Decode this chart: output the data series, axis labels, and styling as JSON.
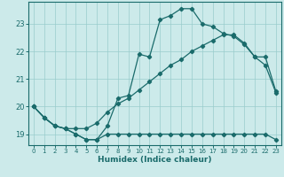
{
  "xlabel": "Humidex (Indice chaleur)",
  "background_color": "#cceaea",
  "grid_color": "#99cccc",
  "line_color": "#1a6b6b",
  "xlim": [
    -0.5,
    23.5
  ],
  "ylim": [
    18.6,
    23.8
  ],
  "yticks": [
    19,
    20,
    21,
    22,
    23
  ],
  "xticks": [
    0,
    1,
    2,
    3,
    4,
    5,
    6,
    7,
    8,
    9,
    10,
    11,
    12,
    13,
    14,
    15,
    16,
    17,
    18,
    19,
    20,
    21,
    22,
    23
  ],
  "line1_x": [
    0,
    1,
    2,
    3,
    4,
    5,
    6,
    7,
    8,
    9,
    10,
    11,
    12,
    13,
    14,
    15,
    16,
    17,
    18,
    19,
    20,
    21,
    22,
    23
  ],
  "line1_y": [
    20.0,
    19.6,
    19.3,
    19.2,
    19.0,
    18.8,
    18.8,
    19.0,
    19.0,
    19.0,
    19.0,
    19.0,
    19.0,
    19.0,
    19.0,
    19.0,
    19.0,
    19.0,
    19.0,
    19.0,
    19.0,
    19.0,
    19.0,
    18.8
  ],
  "line2_x": [
    0,
    1,
    2,
    3,
    4,
    5,
    6,
    7,
    8,
    9,
    10,
    11,
    12,
    13,
    14,
    15,
    16,
    17,
    18,
    19,
    20,
    21,
    22,
    23
  ],
  "line2_y": [
    20.0,
    19.6,
    19.3,
    19.2,
    19.2,
    19.2,
    19.4,
    19.8,
    20.1,
    20.3,
    20.6,
    20.9,
    21.2,
    21.5,
    21.7,
    22.0,
    22.2,
    22.4,
    22.6,
    22.6,
    22.3,
    21.8,
    21.5,
    20.5
  ],
  "line3_x": [
    0,
    1,
    2,
    3,
    4,
    5,
    6,
    7,
    8,
    9,
    10,
    11,
    12,
    13,
    14,
    15,
    16,
    17,
    18,
    19,
    20,
    21,
    22,
    23
  ],
  "line3_y": [
    20.0,
    19.6,
    19.3,
    19.2,
    19.0,
    18.8,
    18.8,
    19.3,
    20.3,
    20.4,
    21.9,
    21.8,
    23.15,
    23.3,
    23.55,
    23.55,
    23.0,
    22.9,
    22.65,
    22.55,
    22.25,
    21.8,
    21.8,
    20.55
  ]
}
